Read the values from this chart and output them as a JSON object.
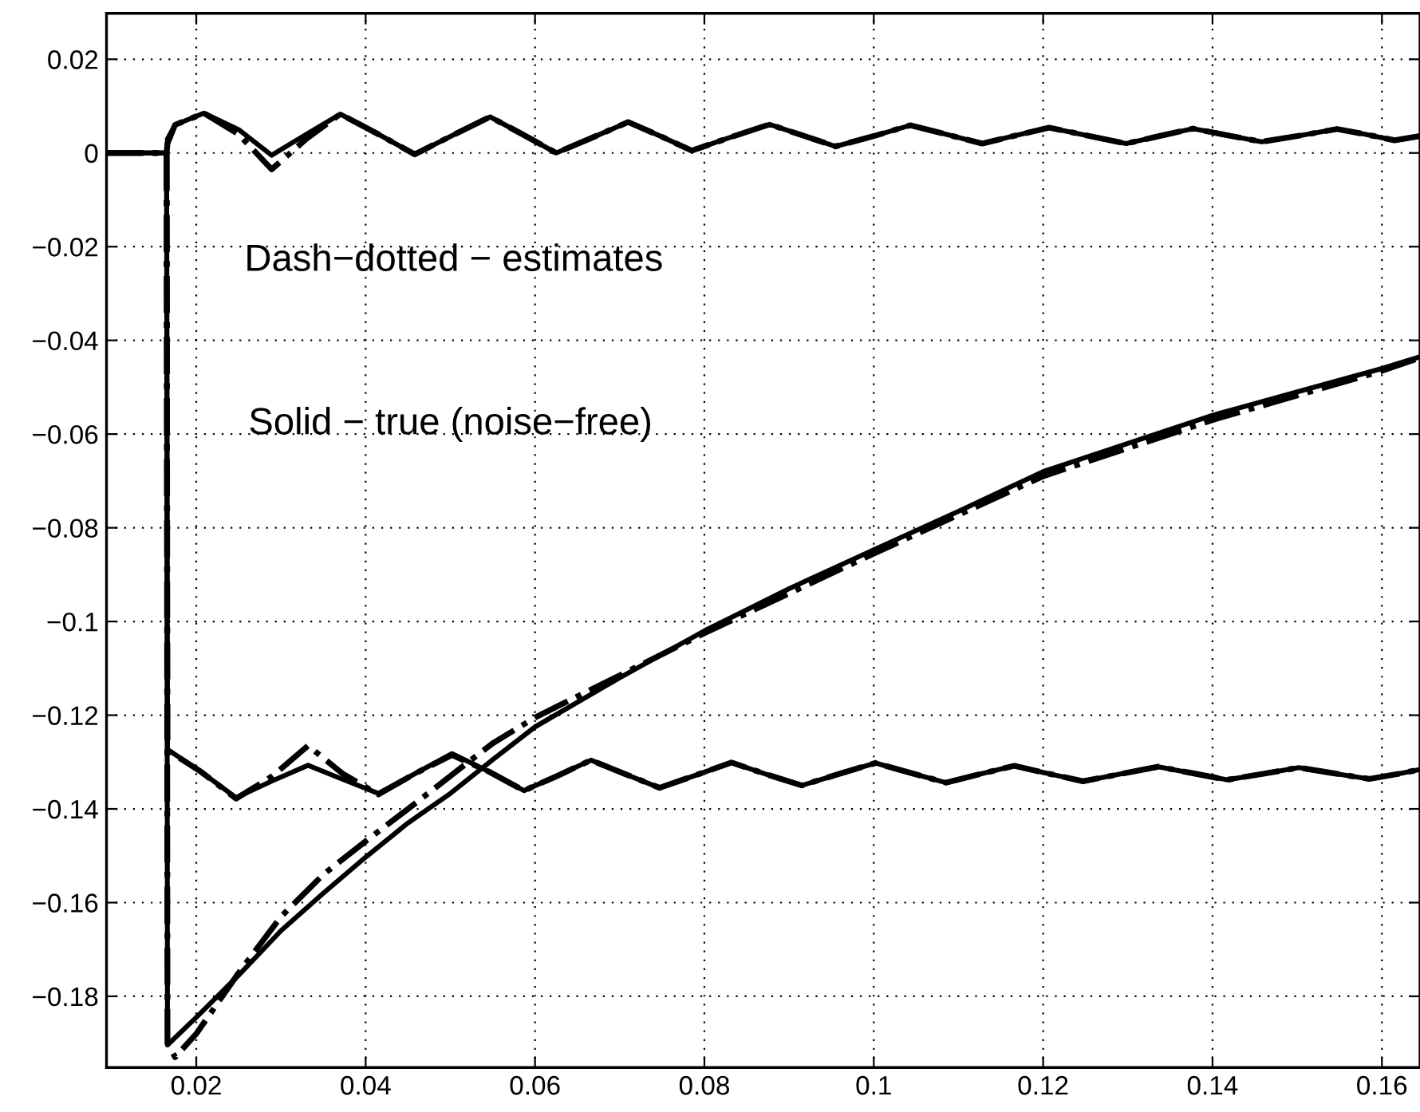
{
  "chart_data": {
    "type": "line",
    "annotations": [
      "Dash−dotted − estimates",
      "Solid − true (noise−free)"
    ],
    "xlim": [
      0.0094,
      0.1645
    ],
    "ylim": [
      -0.1952,
      0.0298
    ],
    "xticks": [
      0.02,
      0.04,
      0.06,
      0.08,
      0.1,
      0.12,
      0.14,
      0.16
    ],
    "yticks": [
      {
        "value": -0.18,
        "label": "−0.18"
      },
      {
        "value": -0.16,
        "label": "−0.16"
      },
      {
        "value": -0.14,
        "label": "−0.14"
      },
      {
        "value": -0.12,
        "label": "−0.12"
      },
      {
        "value": -0.1,
        "label": "−0.1"
      },
      {
        "value": -0.08,
        "label": "−0.08"
      },
      {
        "value": -0.06,
        "label": "−0.06"
      },
      {
        "value": -0.04,
        "label": "−0.04"
      },
      {
        "value": -0.02,
        "label": "−0.02"
      },
      0,
      0.02
    ],
    "grid": true,
    "legend": false,
    "marker": "none",
    "series": [
      {
        "color": "#000000",
        "line_style": "dashdot",
        "x": [
          0.0094,
          0.0165,
          0.0166,
          0.0175,
          0.0209,
          0.025,
          0.0289,
          0.033,
          0.037,
          0.0415,
          0.0458,
          0.0503,
          0.0547,
          0.0585,
          0.0625,
          0.0668,
          0.071,
          0.0748,
          0.0785,
          0.083,
          0.0877,
          0.0915,
          0.0955,
          0.1,
          0.1043,
          0.1085,
          0.1128,
          0.1167,
          0.1207,
          0.125,
          0.1298,
          0.1337,
          0.1377,
          0.1417,
          0.1458,
          0.1503,
          0.1547,
          0.158,
          0.1615,
          0.1645
        ],
        "values": [
          0,
          0,
          0.002,
          0.006,
          0.0085,
          0.004,
          -0.0035,
          0.003,
          0.0083,
          0.004,
          -0.0003,
          0.0038,
          0.0077,
          0.004,
          0,
          0.0033,
          0.0066,
          0.0036,
          0.0005,
          0.0033,
          0.0061,
          0.0038,
          0.0014,
          0.0036,
          0.0059,
          0.004,
          0.002,
          0.0037,
          0.0054,
          0.0038,
          0.002,
          0.0036,
          0.0052,
          0.0038,
          0.0024,
          0.0037,
          0.0051,
          0.004,
          0.0027,
          0.0036
        ]
      },
      {
        "color": "#000000",
        "line_style": "solid",
        "x": [
          0.0094,
          0.0165,
          0.0166,
          0.0175,
          0.0209,
          0.025,
          0.0289,
          0.033,
          0.037,
          0.0415,
          0.0458,
          0.0503,
          0.0547,
          0.0585,
          0.0625,
          0.0668,
          0.071,
          0.0748,
          0.0785,
          0.083,
          0.0877,
          0.0915,
          0.0955,
          0.1,
          0.1043,
          0.1085,
          0.1128,
          0.1167,
          0.1207,
          0.125,
          0.1298,
          0.1337,
          0.1377,
          0.1417,
          0.1458,
          0.1503,
          0.1547,
          0.158,
          0.1615,
          0.1645
        ],
        "values": [
          0,
          0,
          0.003,
          0.006,
          0.0085,
          0.005,
          -0.0005,
          0.004,
          0.0083,
          0.004,
          -0.0003,
          0.0038,
          0.0077,
          0.004,
          0,
          0.0033,
          0.0066,
          0.0036,
          0.0005,
          0.0033,
          0.0061,
          0.0038,
          0.0014,
          0.0036,
          0.0059,
          0.004,
          0.002,
          0.0037,
          0.0054,
          0.0038,
          0.002,
          0.0036,
          0.0052,
          0.0038,
          0.0024,
          0.0037,
          0.0051,
          0.004,
          0.0027,
          0.0036
        ]
      },
      {
        "color": "#000000",
        "line_style": "dashdot",
        "x": [
          0.0094,
          0.0165,
          0.0166,
          0.0205,
          0.0247,
          0.029,
          0.0332,
          0.0373,
          0.0415,
          0.0458,
          0.0502,
          0.0545,
          0.0587,
          0.0627,
          0.0666,
          0.0707,
          0.0747,
          0.079,
          0.0832,
          0.0873,
          0.0915,
          0.0958,
          0.1002,
          0.1043,
          0.1085,
          0.1125,
          0.1166,
          0.1207,
          0.1247,
          0.129,
          0.1336,
          0.1377,
          0.1417,
          0.146,
          0.1502,
          0.1543,
          0.1585,
          0.162,
          0.1645
        ],
        "values": [
          0,
          0,
          -0.1275,
          -0.132,
          -0.1378,
          -0.133,
          -0.1265,
          -0.1325,
          -0.1369,
          -0.1325,
          -0.1285,
          -0.132,
          -0.1361,
          -0.1329,
          -0.1296,
          -0.1326,
          -0.1355,
          -0.1328,
          -0.1301,
          -0.1326,
          -0.135,
          -0.1326,
          -0.1302,
          -0.1323,
          -0.1344,
          -0.1326,
          -0.1308,
          -0.1325,
          -0.1341,
          -0.1326,
          -0.131,
          -0.1324,
          -0.1338,
          -0.1325,
          -0.1312,
          -0.1324,
          -0.1336,
          -0.1325,
          -0.1316
        ]
      },
      {
        "color": "#000000",
        "line_style": "solid",
        "x": [
          0.0094,
          0.0165,
          0.0166,
          0.0205,
          0.0247,
          0.029,
          0.0332,
          0.0373,
          0.0415,
          0.0458,
          0.0502,
          0.0545,
          0.0587,
          0.0627,
          0.0666,
          0.0707,
          0.0747,
          0.079,
          0.0832,
          0.0873,
          0.0915,
          0.0958,
          0.1002,
          0.1043,
          0.1085,
          0.1125,
          0.1166,
          0.1207,
          0.1247,
          0.129,
          0.1336,
          0.1377,
          0.1417,
          0.146,
          0.1502,
          0.1543,
          0.1585,
          0.162,
          0.1645
        ],
        "values": [
          0,
          0,
          -0.1273,
          -0.132,
          -0.1376,
          -0.134,
          -0.1307,
          -0.1337,
          -0.1367,
          -0.1325,
          -0.1282,
          -0.132,
          -0.1361,
          -0.1329,
          -0.1296,
          -0.1326,
          -0.1355,
          -0.1328,
          -0.1301,
          -0.1326,
          -0.135,
          -0.1326,
          -0.1302,
          -0.1323,
          -0.1344,
          -0.1326,
          -0.1308,
          -0.1325,
          -0.1341,
          -0.1326,
          -0.131,
          -0.1324,
          -0.1338,
          -0.1325,
          -0.1312,
          -0.1324,
          -0.1336,
          -0.1325,
          -0.1316
        ]
      },
      {
        "color": "#000000",
        "line_style": "dashdot",
        "x": [
          0.0094,
          0.0165,
          0.0166,
          0.0175,
          0.02,
          0.025,
          0.03,
          0.035,
          0.04,
          0.045,
          0.05,
          0.055,
          0.06,
          0.07,
          0.08,
          0.1,
          0.12,
          0.14,
          0.16,
          0.1645
        ],
        "values": [
          0,
          0,
          -0.19,
          -0.193,
          -0.188,
          -0.175,
          -0.163,
          -0.154,
          -0.1469,
          -0.14,
          -0.133,
          -0.126,
          -0.1205,
          -0.1115,
          -0.1025,
          -0.0855,
          -0.069,
          -0.057,
          -0.0465,
          -0.0437
        ]
      },
      {
        "color": "#000000",
        "line_style": "solid",
        "x": [
          0.0094,
          0.0165,
          0.0166,
          0.02,
          0.025,
          0.03,
          0.035,
          0.04,
          0.045,
          0.05,
          0.055,
          0.06,
          0.07,
          0.08,
          0.09,
          0.1,
          0.11,
          0.12,
          0.13,
          0.14,
          0.15,
          0.16,
          0.1645
        ],
        "values": [
          0,
          0,
          -0.1904,
          -0.1845,
          -0.1755,
          -0.166,
          -0.158,
          -0.1503,
          -0.143,
          -0.1367,
          -0.1295,
          -0.1225,
          -0.112,
          -0.102,
          -0.093,
          -0.0847,
          -0.0765,
          -0.068,
          -0.062,
          -0.056,
          -0.051,
          -0.046,
          -0.0435
        ]
      }
    ]
  }
}
